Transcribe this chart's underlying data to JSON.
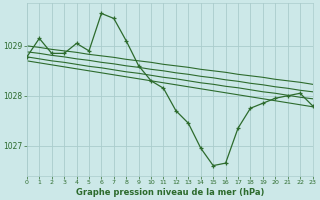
{
  "title": "Graphe pression niveau de la mer (hPa)",
  "background_color": "#cce8e8",
  "grid_color": "#aacccc",
  "line_color": "#2d6b2d",
  "xlim": [
    0,
    23
  ],
  "ylim": [
    1026.4,
    1029.85
  ],
  "yticks": [
    1027,
    1028,
    1029
  ],
  "xticks": [
    0,
    1,
    2,
    3,
    4,
    5,
    6,
    7,
    8,
    9,
    10,
    11,
    12,
    13,
    14,
    15,
    16,
    17,
    18,
    19,
    20,
    21,
    22,
    23
  ],
  "series": [
    {
      "x": [
        0,
        1,
        2,
        3,
        4,
        5,
        6,
        7,
        8,
        9,
        10,
        11,
        12,
        13,
        14,
        15,
        16,
        17,
        18,
        19,
        20,
        21,
        22,
        23
      ],
      "y": [
        1028.78,
        1029.15,
        1028.85,
        1028.85,
        1029.05,
        1028.9,
        1029.65,
        1029.55,
        1029.1,
        1028.6,
        1028.3,
        1028.15,
        1027.7,
        1027.45,
        1026.95,
        1026.6,
        1026.65,
        1027.35,
        1027.75,
        1027.85,
        1027.95,
        1028.0,
        1028.05,
        1027.8
      ],
      "marker": true
    },
    {
      "x": [
        0,
        1,
        2,
        3,
        4,
        5,
        6,
        7,
        8,
        9,
        10,
        11,
        12,
        13,
        14,
        15,
        16,
        17,
        18,
        19,
        20,
        21,
        22,
        23
      ],
      "y": [
        1029.0,
        1028.97,
        1028.93,
        1028.9,
        1028.87,
        1028.83,
        1028.8,
        1028.77,
        1028.73,
        1028.7,
        1028.67,
        1028.63,
        1028.6,
        1028.57,
        1028.53,
        1028.5,
        1028.47,
        1028.43,
        1028.4,
        1028.37,
        1028.33,
        1028.3,
        1028.27,
        1028.23
      ],
      "marker": false
    },
    {
      "x": [
        0,
        1,
        2,
        3,
        4,
        5,
        6,
        7,
        8,
        9,
        10,
        11,
        12,
        13,
        14,
        15,
        16,
        17,
        18,
        19,
        20,
        21,
        22,
        23
      ],
      "y": [
        1028.88,
        1028.85,
        1028.81,
        1028.78,
        1028.74,
        1028.71,
        1028.67,
        1028.64,
        1028.6,
        1028.57,
        1028.53,
        1028.5,
        1028.46,
        1028.43,
        1028.39,
        1028.36,
        1028.32,
        1028.29,
        1028.25,
        1028.22,
        1028.18,
        1028.15,
        1028.11,
        1028.08
      ],
      "marker": false
    },
    {
      "x": [
        0,
        1,
        2,
        3,
        4,
        5,
        6,
        7,
        8,
        9,
        10,
        11,
        12,
        13,
        14,
        15,
        16,
        17,
        18,
        19,
        20,
        21,
        22,
        23
      ],
      "y": [
        1028.78,
        1028.74,
        1028.7,
        1028.67,
        1028.63,
        1028.59,
        1028.56,
        1028.52,
        1028.48,
        1028.45,
        1028.41,
        1028.37,
        1028.34,
        1028.3,
        1028.26,
        1028.23,
        1028.19,
        1028.16,
        1028.12,
        1028.08,
        1028.05,
        1028.01,
        1027.97,
        1027.94
      ],
      "marker": false
    },
    {
      "x": [
        0,
        1,
        2,
        3,
        4,
        5,
        6,
        7,
        8,
        9,
        10,
        11,
        12,
        13,
        14,
        15,
        16,
        17,
        18,
        19,
        20,
        21,
        22,
        23
      ],
      "y": [
        1028.7,
        1028.66,
        1028.62,
        1028.58,
        1028.54,
        1028.5,
        1028.46,
        1028.42,
        1028.38,
        1028.34,
        1028.3,
        1028.26,
        1028.22,
        1028.18,
        1028.14,
        1028.1,
        1028.06,
        1028.02,
        1027.98,
        1027.94,
        1027.9,
        1027.86,
        1027.82,
        1027.78
      ],
      "marker": false
    }
  ]
}
